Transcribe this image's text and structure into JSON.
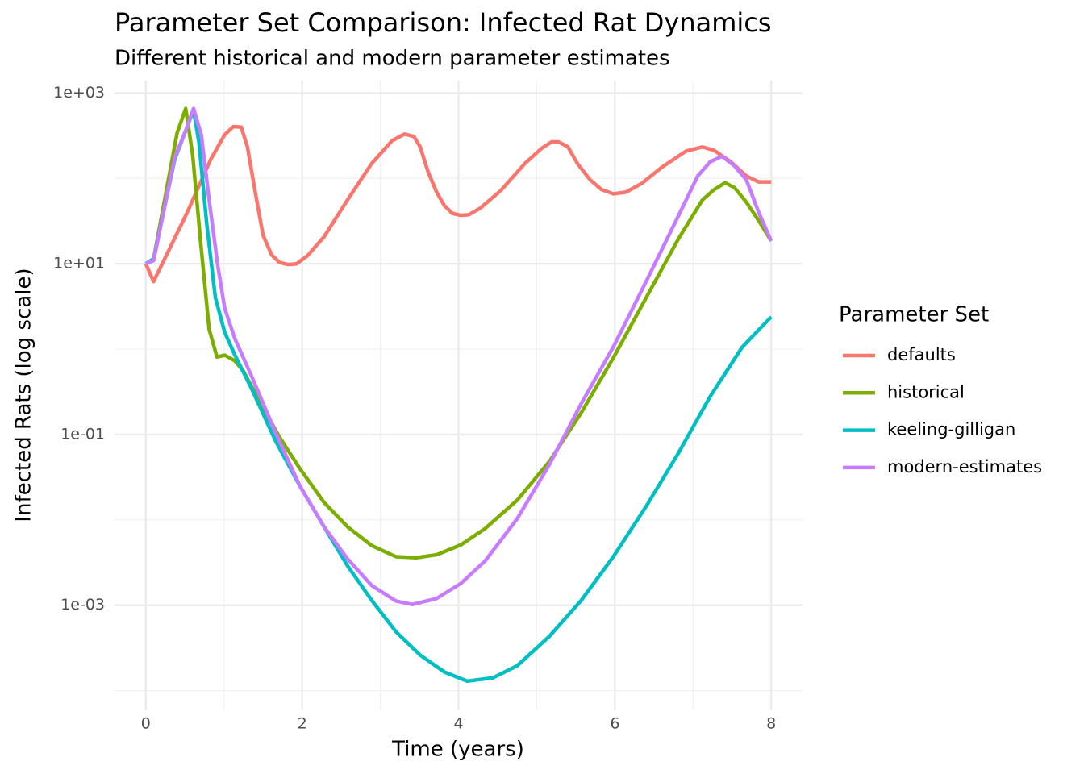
{
  "chart_data": {
    "type": "line",
    "title": "Parameter Set Comparison: Infected Rat Dynamics",
    "subtitle": "Different historical and modern parameter estimates",
    "x_label": "Time (years)",
    "y_label": "Infected Rats (log scale)",
    "legend_title": "Parameter Set",
    "legend_position": "right",
    "log_y": true,
    "grid": true,
    "xlim": [
      -0.4,
      8.4
    ],
    "xticks": [
      0,
      2,
      4,
      6,
      8
    ],
    "ylim": [
      6e-05,
      1400
    ],
    "yticks": [
      {
        "value": 1000,
        "label": "1e+03"
      },
      {
        "value": 10,
        "label": "1e+01"
      },
      {
        "value": 0.1,
        "label": "1e-01"
      },
      {
        "value": 0.001,
        "label": "1e-03"
      }
    ],
    "series": [
      {
        "name": "defaults",
        "color": "#F8766D",
        "x": [
          0,
          0.1,
          0.53,
          0.83,
          1.01,
          1.12,
          1.22,
          1.3,
          1.4,
          1.5,
          1.61,
          1.71,
          1.82,
          1.93,
          2.07,
          2.28,
          2.58,
          2.89,
          3.15,
          3.31,
          3.43,
          3.51,
          3.61,
          3.72,
          3.82,
          3.92,
          4.03,
          4.13,
          4.28,
          4.54,
          4.85,
          5.06,
          5.19,
          5.28,
          5.4,
          5.52,
          5.68,
          5.83,
          5.98,
          6.14,
          6.34,
          6.6,
          6.91,
          7.12,
          7.27,
          7.48,
          7.68,
          7.84,
          8
        ],
        "values": [
          10,
          6.2,
          40,
          167,
          326,
          405,
          400,
          234,
          69,
          21.6,
          12.7,
          10.4,
          9.8,
          10,
          12.5,
          20.7,
          56,
          150,
          277,
          331,
          310,
          234,
          120,
          69,
          48,
          39,
          37,
          37.5,
          45,
          72,
          150,
          224,
          268,
          268,
          234,
          150,
          97,
          74,
          66,
          69,
          87,
          135,
          209,
          234,
          213,
          157,
          107,
          91,
          91
        ]
      },
      {
        "name": "historical",
        "color": "#7CAE00",
        "x": [
          0,
          0.1,
          0.4,
          0.51,
          0.6,
          0.7,
          0.81,
          0.91,
          1.01,
          1.14,
          1.25,
          1.45,
          1.71,
          1.97,
          2.28,
          2.58,
          2.89,
          3.2,
          3.46,
          3.72,
          4.03,
          4.34,
          4.75,
          5.16,
          5.57,
          5.98,
          6.4,
          6.81,
          7.12,
          7.27,
          7.41,
          7.53,
          7.68,
          7.84,
          8
        ],
        "values": [
          10,
          11.4,
          340,
          660,
          186,
          18.5,
          1.71,
          0.81,
          0.85,
          0.73,
          0.55,
          0.25,
          0.093,
          0.04,
          0.016,
          0.0083,
          0.005,
          0.0037,
          0.0036,
          0.0039,
          0.0051,
          0.0079,
          0.017,
          0.048,
          0.18,
          0.79,
          4.0,
          19.4,
          56,
          74,
          89,
          78,
          53,
          32,
          18.5
        ]
      },
      {
        "name": "keeling-gilligan",
        "color": "#00BFC4",
        "x": [
          0,
          0.1,
          0.37,
          0.53,
          0.61,
          0.68,
          0.78,
          0.89,
          1.01,
          1.14,
          1.35,
          1.66,
          1.97,
          2.28,
          2.58,
          2.89,
          3.2,
          3.51,
          3.82,
          4.11,
          4.44,
          4.75,
          5.16,
          5.57,
          5.98,
          6.4,
          6.81,
          7.22,
          7.63,
          8
        ],
        "values": [
          10,
          11.4,
          167,
          405,
          630,
          263,
          29,
          4.0,
          1.57,
          0.85,
          0.35,
          0.084,
          0.025,
          0.0083,
          0.0029,
          0.00114,
          0.00049,
          0.00026,
          0.000165,
          0.000129,
          0.000141,
          0.000195,
          0.00043,
          0.00114,
          0.0037,
          0.0144,
          0.06,
          0.28,
          1.06,
          2.39
        ]
      },
      {
        "name": "modern-estimates",
        "color": "#C77CFF",
        "x": [
          0,
          0.1,
          0.37,
          0.53,
          0.61,
          0.71,
          0.81,
          0.92,
          1.01,
          1.14,
          1.35,
          1.66,
          1.97,
          2.28,
          2.58,
          2.89,
          3.2,
          3.41,
          3.72,
          4.03,
          4.34,
          4.75,
          5.16,
          5.57,
          5.98,
          6.4,
          6.81,
          7.06,
          7.22,
          7.37,
          7.53,
          7.68,
          7.84,
          8
        ],
        "values": [
          10,
          10.9,
          175,
          405,
          660,
          326,
          56,
          9.6,
          3.0,
          1.32,
          0.49,
          0.105,
          0.025,
          0.0083,
          0.0035,
          0.0017,
          0.00112,
          0.00102,
          0.0012,
          0.0018,
          0.0033,
          0.0103,
          0.044,
          0.23,
          1.06,
          6.2,
          36,
          107,
          157,
          182,
          140,
          97,
          40,
          18.5
        ]
      }
    ]
  }
}
